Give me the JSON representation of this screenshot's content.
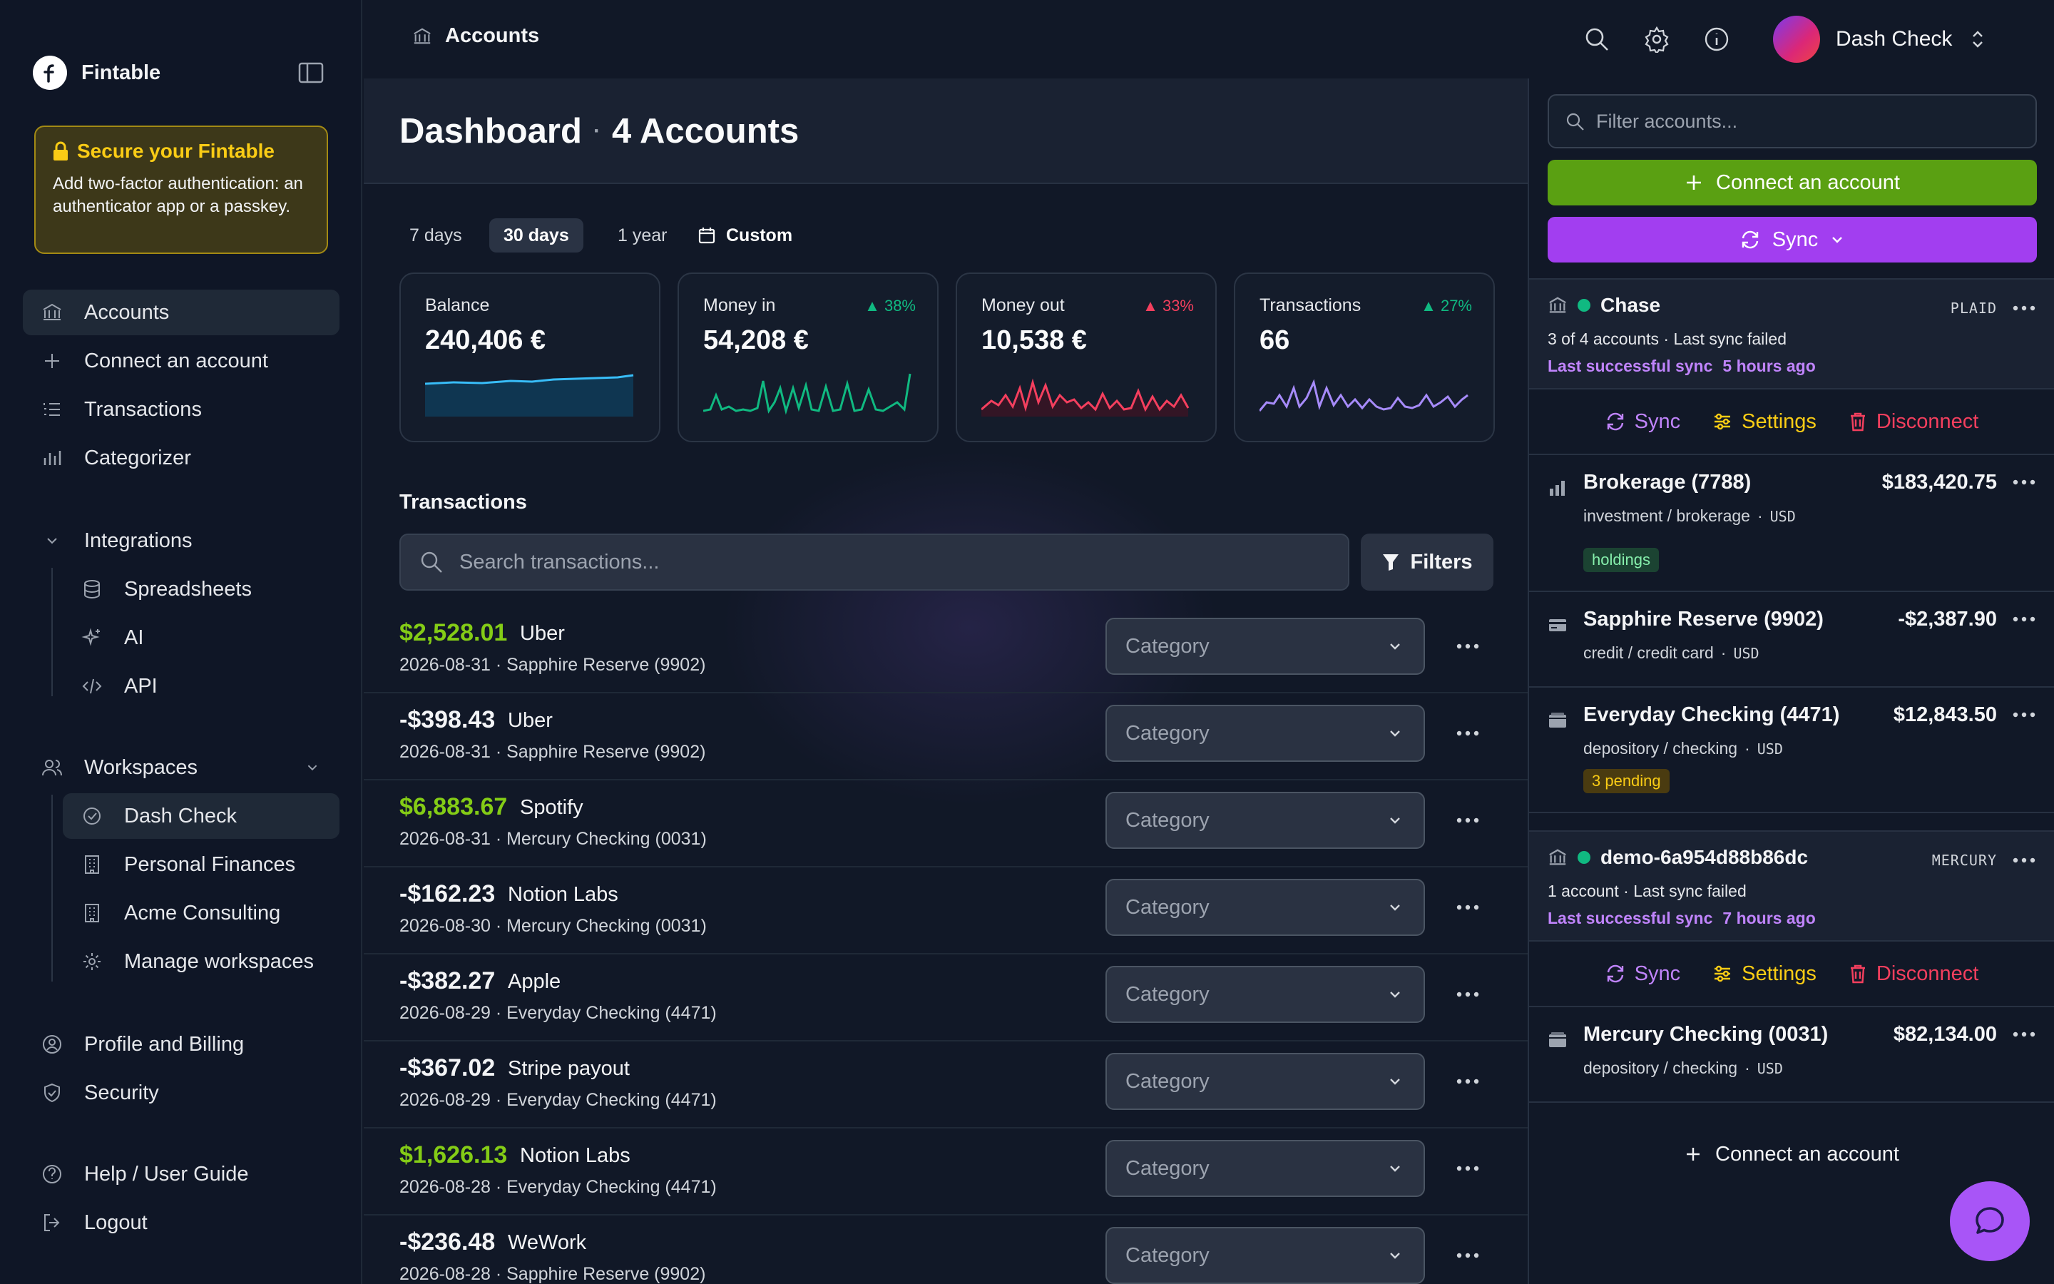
{
  "app": {
    "name": "Fintable"
  },
  "secure": {
    "title": "Secure your Fintable",
    "text": "Add two-factor authentication: an authenticator app or a passkey."
  },
  "nav": {
    "accounts": "Accounts",
    "connect": "Connect an account",
    "transactions": "Transactions",
    "categorizer": "Categorizer",
    "integrations": "Integrations",
    "spreadsheets": "Spreadsheets",
    "ai": "AI",
    "api": "API",
    "workspaces": "Workspaces",
    "dash_check": "Dash Check",
    "personal_finances": "Personal Finances",
    "acme": "Acme Consulting",
    "manage": "Manage workspaces",
    "profile": "Profile and Billing",
    "security": "Security",
    "help": "Help / User Guide",
    "logout": "Logout"
  },
  "topbar": {
    "breadcrumb": "Accounts",
    "user_name": "Dash Check"
  },
  "header": {
    "title": "Dashboard",
    "subtitle": "4 Accounts"
  },
  "ranges": [
    "7 days",
    "30 days",
    "1 year",
    "Custom"
  ],
  "stats": [
    {
      "label": "Balance",
      "value": "240,406 €",
      "delta": "",
      "color": "#38bdf8"
    },
    {
      "label": "Money in",
      "value": "54,208 €",
      "delta": "▲ 38%",
      "color": "#10b981"
    },
    {
      "label": "Money out",
      "value": "10,538 €",
      "delta": "▲ 33%",
      "color": "#f43f5e"
    },
    {
      "label": "Transactions",
      "value": "66",
      "delta": "▲ 27%",
      "color": "#a78bfa"
    }
  ],
  "transactions_section": {
    "title": "Transactions",
    "search_placeholder": "Search transactions...",
    "filters_label": "Filters",
    "category_placeholder": "Category"
  },
  "transactions": [
    {
      "amount": "$2,528.01",
      "positive": true,
      "merchant": "Uber",
      "date": "2026-08-31",
      "account": "Sapphire Reserve (9902)"
    },
    {
      "amount": "-$398.43",
      "positive": false,
      "merchant": "Uber",
      "date": "2026-08-31",
      "account": "Sapphire Reserve (9902)"
    },
    {
      "amount": "$6,883.67",
      "positive": true,
      "merchant": "Spotify",
      "date": "2026-08-31",
      "account": "Mercury Checking (0031)"
    },
    {
      "amount": "-$162.23",
      "positive": false,
      "merchant": "Notion Labs",
      "date": "2026-08-30",
      "account": "Mercury Checking (0031)"
    },
    {
      "amount": "-$382.27",
      "positive": false,
      "merchant": "Apple",
      "date": "2026-08-29",
      "account": "Everyday Checking (4471)"
    },
    {
      "amount": "-$367.02",
      "positive": false,
      "merchant": "Stripe payout",
      "date": "2026-08-29",
      "account": "Everyday Checking (4471)"
    },
    {
      "amount": "$1,626.13",
      "positive": true,
      "merchant": "Notion Labs",
      "date": "2026-08-28",
      "account": "Everyday Checking (4471)"
    },
    {
      "amount": "-$236.48",
      "positive": false,
      "merchant": "WeWork",
      "date": "2026-08-28",
      "account": "Sapphire Reserve (9902)"
    }
  ],
  "panel": {
    "filter_placeholder": "Filter accounts...",
    "connect_label": "Connect an account",
    "sync_label": "Sync",
    "actions": {
      "sync": "Sync",
      "settings": "Settings",
      "disconnect": "Disconnect"
    },
    "institutions": [
      {
        "name": "Chase",
        "provider": "PLAID",
        "count": "3 of 4 accounts",
        "status": "Last sync failed",
        "last_label": "Last successful sync",
        "last_time": "5 hours ago",
        "accounts": [
          {
            "name": "Brokerage (7788)",
            "balance": "$183,420.75",
            "type": "investment / brokerage",
            "currency": "USD",
            "badge": "holdings",
            "badge_kind": "green",
            "icon": "bar-chart-icon"
          },
          {
            "name": "Sapphire Reserve (9902)",
            "balance": "-$2,387.90",
            "type": "credit / credit card",
            "currency": "USD",
            "badge": "",
            "badge_kind": "",
            "icon": "credit-card-icon"
          },
          {
            "name": "Everyday Checking (4471)",
            "balance": "$12,843.50",
            "type": "depository / checking",
            "currency": "USD",
            "badge": "3 pending",
            "badge_kind": "amber",
            "icon": "wallet-icon"
          }
        ]
      },
      {
        "name": "demo-6a954d88b86dc",
        "provider": "MERCURY",
        "count": "1 account",
        "status": "Last sync failed",
        "last_label": "Last successful sync",
        "last_time": "7 hours ago",
        "accounts": [
          {
            "name": "Mercury Checking (0031)",
            "balance": "$82,134.00",
            "type": "depository / checking",
            "currency": "USD",
            "badge": "",
            "badge_kind": "",
            "icon": "wallet-icon"
          }
        ]
      }
    ],
    "connect_link": "Connect an account"
  }
}
